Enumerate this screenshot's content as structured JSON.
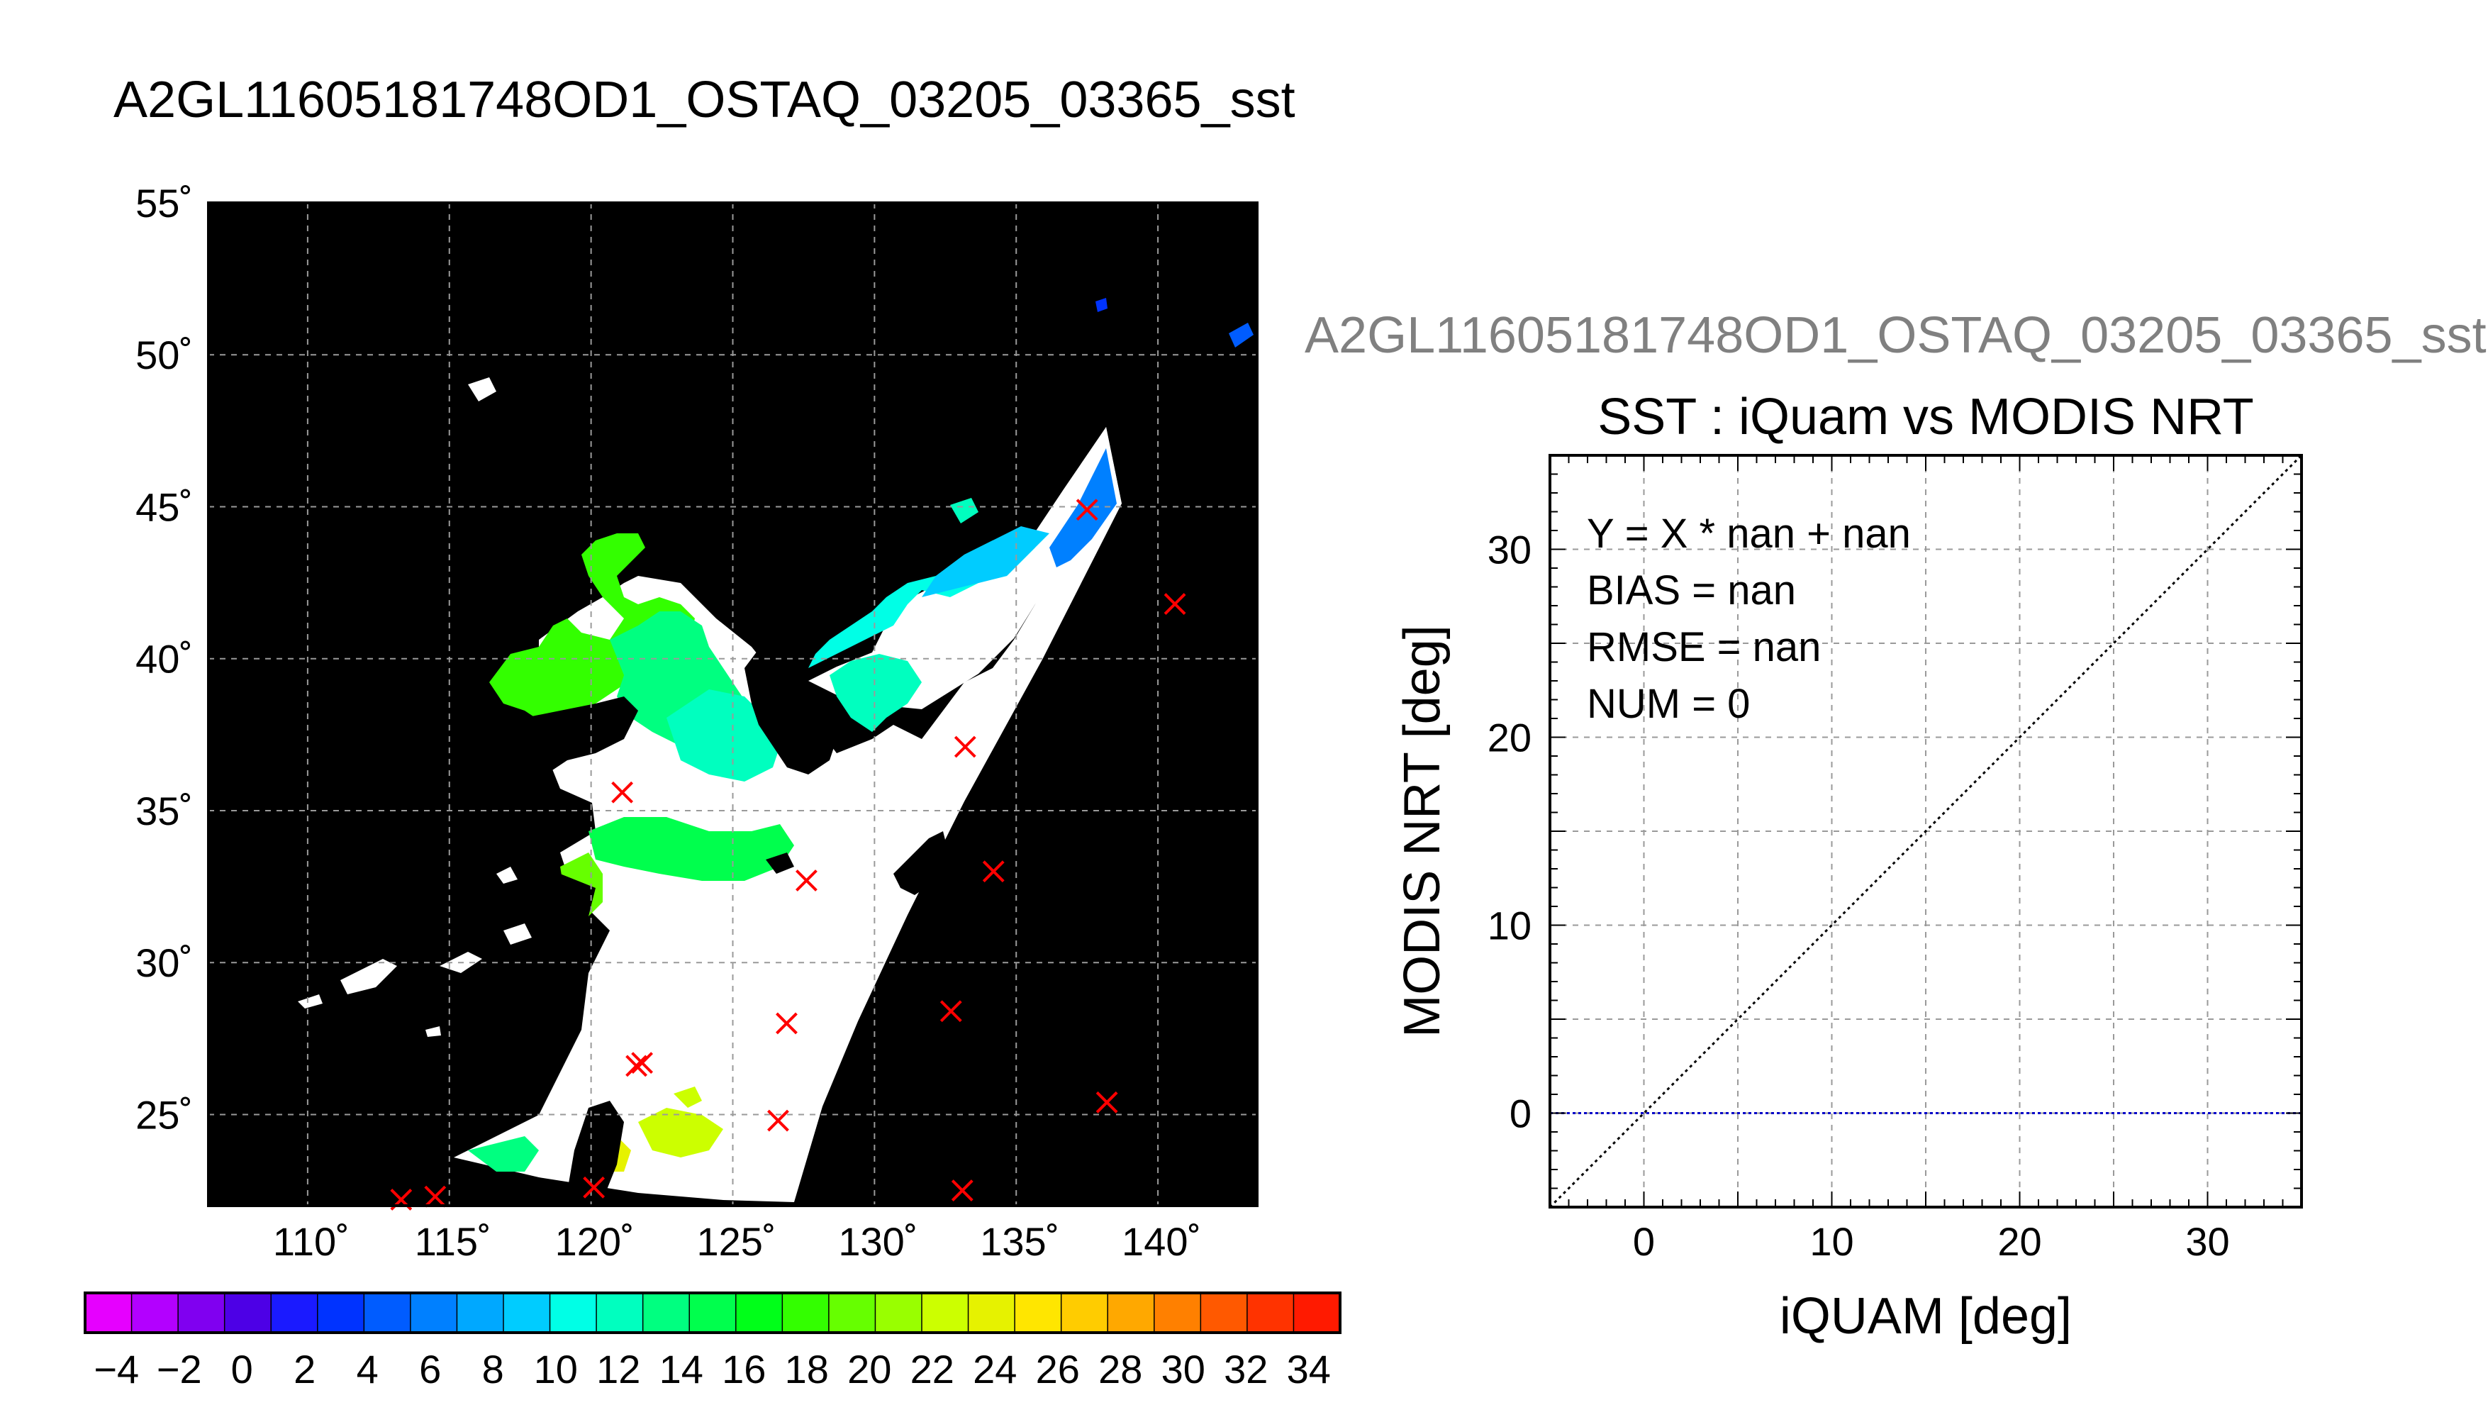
{
  "figure": {
    "title": "A2GL11605181748OD1_OSTAQ_03205_03365_sst",
    "ghost_title": "A2GL11605181748OD1_OSTAQ_03205_03365_sst"
  },
  "chart_data": [
    {
      "type": "heatmap",
      "name": "sst-map",
      "title": "A2GL11605181748OD1_OSTAQ_03205_03365_sst",
      "lon_range": [
        106.5,
        143.5
      ],
      "lat_range": [
        22,
        55
      ],
      "x_ticks": [
        110,
        115,
        120,
        125,
        130,
        135,
        140
      ],
      "y_ticks": [
        25,
        30,
        35,
        40,
        45,
        50,
        55
      ],
      "x_tick_labels": [
        "110˚",
        "115˚",
        "120˚",
        "125˚",
        "130˚",
        "135˚",
        "140˚"
      ],
      "y_tick_labels": [
        "25˚",
        "30˚",
        "35˚",
        "40˚",
        "45˚",
        "50˚",
        "55˚"
      ],
      "grid": true,
      "background_color": "#000000",
      "no_data_color": "#ffffff",
      "marker_color": "#ff0000",
      "markers": [
        [
          113.3,
          22.2
        ],
        [
          114.5,
          22.3
        ],
        [
          120.1,
          22.6
        ],
        [
          133.1,
          22.5
        ],
        [
          121.1,
          35.6
        ],
        [
          127.6,
          32.7
        ],
        [
          133.2,
          37.1
        ],
        [
          134.2,
          33.0
        ],
        [
          126.9,
          28.0
        ],
        [
          132.7,
          28.4
        ],
        [
          121.8,
          26.7
        ],
        [
          121.6,
          26.6
        ],
        [
          126.6,
          24.8
        ],
        [
          138.2,
          25.4
        ],
        [
          137.5,
          44.9
        ],
        [
          140.6,
          41.8
        ]
      ],
      "colorbar": {
        "ticks": [
          -4,
          -2,
          0,
          2,
          4,
          6,
          8,
          10,
          12,
          14,
          16,
          18,
          20,
          22,
          24,
          26,
          28,
          30,
          32,
          34
        ],
        "range": [
          -5,
          35
        ],
        "colors": [
          "#e600ff",
          "#b300ff",
          "#8000f0",
          "#4d00e6",
          "#1a1aff",
          "#0033ff",
          "#005cff",
          "#0080ff",
          "#00a8ff",
          "#00ccff",
          "#00ffe6",
          "#00ffbf",
          "#00ff80",
          "#00ff4d",
          "#00ff19",
          "#33ff00",
          "#66ff00",
          "#99ff00",
          "#ccff00",
          "#e6f200",
          "#ffe600",
          "#ffcc00",
          "#ffa800",
          "#ff8000",
          "#ff5900",
          "#ff3300",
          "#ff1a00"
        ]
      }
    },
    {
      "type": "scatter",
      "name": "iquam-vs-modis",
      "title": "SST : iQuam vs MODIS NRT",
      "xlabel": "iQUAM [deg]",
      "ylabel": "MODIS NRT [deg]",
      "xlim": [
        -5,
        35
      ],
      "ylim": [
        -5,
        35
      ],
      "x_ticks": [
        0,
        10,
        20,
        30
      ],
      "y_ticks": [
        0,
        10,
        20,
        30
      ],
      "grid": true,
      "grid_step": 5,
      "points": [],
      "reference_line": {
        "type": "y=x",
        "color": "#000000",
        "style": "dotted"
      },
      "zero_line": {
        "y": 0,
        "color": "#0000c8",
        "style": "dotted"
      },
      "stats": {
        "equation": "Y = X * nan + nan",
        "bias": "BIAS = nan",
        "rmse": "RMSE = nan",
        "num": "NUM = 0"
      }
    }
  ]
}
